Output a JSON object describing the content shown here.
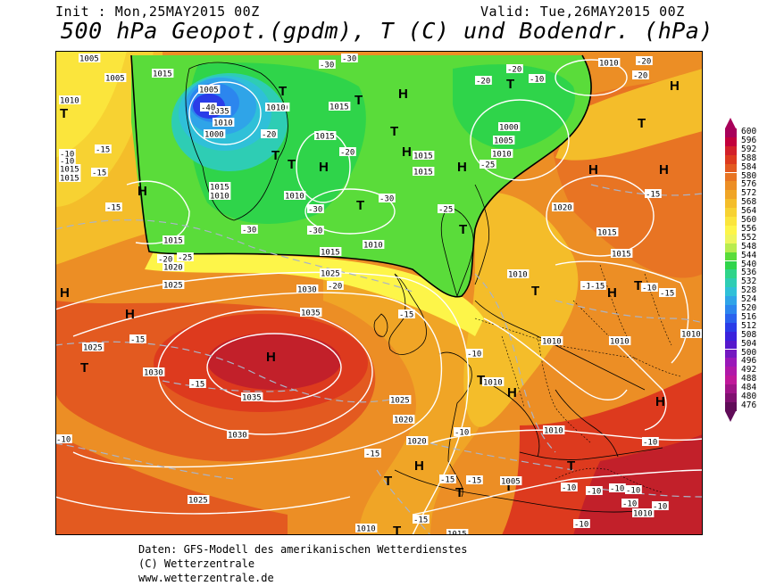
{
  "header": {
    "init": "Init : Mon,25MAY2015 00Z",
    "valid": "Valid: Tue,26MAY2015 00Z",
    "title": "500 hPa Geopot.(gpdm), T (C) und Bodendr. (hPa)"
  },
  "footer": {
    "line1": "Daten: GFS-Modell des amerikanischen Wetterdienstes",
    "line2": "(C) Wetterzentrale",
    "line3": "www.wetterzentrale.de"
  },
  "colorbar": {
    "unit": "gpdm",
    "labels": [
      "600",
      "596",
      "592",
      "588",
      "584",
      "580",
      "576",
      "572",
      "568",
      "564",
      "560",
      "556",
      "552",
      "548",
      "544",
      "540",
      "536",
      "532",
      "528",
      "524",
      "520",
      "516",
      "512",
      "508",
      "504",
      "500",
      "496",
      "492",
      "488",
      "484",
      "480",
      "476"
    ],
    "colors": [
      "#a8005a",
      "#c2003c",
      "#d2202a",
      "#dd3a1e",
      "#e35a20",
      "#e87423",
      "#ec8e25",
      "#f0a526",
      "#f4bd2a",
      "#f7d232",
      "#fbe53c",
      "#fdf549",
      "#eef55d",
      "#b8ec4f",
      "#5adc3a",
      "#2fd44a",
      "#2fd48a",
      "#2ecdb4",
      "#2fc0d8",
      "#2fa4e8",
      "#2c86ee",
      "#2a62ee",
      "#2a3ce8",
      "#3a22dc",
      "#5618cc",
      "#7418c0",
      "#9a18b8",
      "#b018a8",
      "#c0189a",
      "#a01488",
      "#801070",
      "#600c58"
    ]
  },
  "map": {
    "pressure_centers": [
      {
        "type": "H",
        "label": "H"
      },
      {
        "type": "T",
        "label": "T"
      }
    ],
    "isobar_labels": [
      "1005",
      "1010",
      "1015",
      "1020",
      "1025",
      "1030",
      "1035",
      "1000"
    ],
    "temperature_labels": [
      "-10",
      "-15",
      "-20",
      "-25",
      "-30",
      "-40"
    ]
  }
}
